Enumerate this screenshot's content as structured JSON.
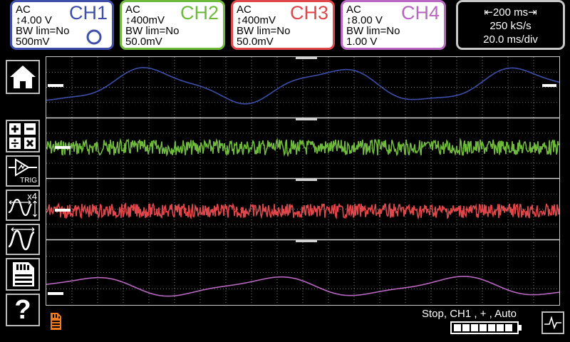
{
  "channels": [
    {
      "coupling": "AC",
      "scale": "↕4.00 V",
      "bw": "BW lim=No",
      "offset": "500mV",
      "name": "CH1",
      "color": "#3d4fa8"
    },
    {
      "coupling": "AC",
      "scale": "↕400mV",
      "bw": "BW lim=No",
      "offset": "50.0mV",
      "name": "CH2",
      "color": "#6fba3c"
    },
    {
      "coupling": "AC",
      "scale": "↕400mV",
      "bw": "BW lim=No",
      "offset": "50.0mV",
      "name": "CH3",
      "color": "#e0474a"
    },
    {
      "coupling": "AC",
      "scale": "↕8.00 V",
      "bw": "BW lim=No",
      "offset": "1.00 V",
      "name": "CH4",
      "color": "#b868c0"
    }
  ],
  "timebase": {
    "span": "⇤200 ms⇥",
    "rate": "250 kS/s",
    "div": "20.0 ms/div"
  },
  "status": {
    "text": "Stop, CH1 , + , Auto"
  },
  "colors": {
    "ch1": "#3d4fa8",
    "ch2": "#6fba3c",
    "ch3": "#e0474a",
    "ch4": "#b868c0",
    "sd": "#f07a1e"
  },
  "sidebar": {
    "trig_label": "TRIG",
    "zoom_label": "x4",
    "help_label": "?"
  }
}
